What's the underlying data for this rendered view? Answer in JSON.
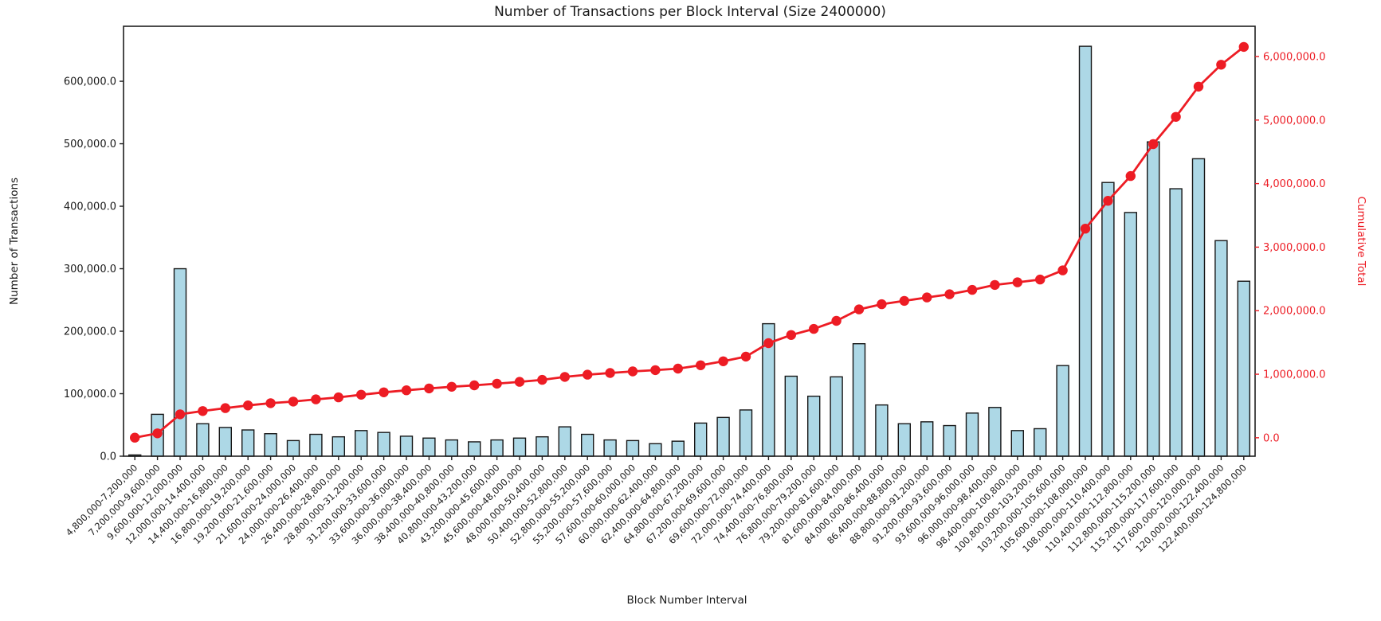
{
  "page": {
    "background_color": "#ffffff"
  },
  "chart_data": {
    "type": "bar",
    "title": "Number of Transactions per Block Interval (Size 2400000)",
    "xlabel": "Block Number Interval",
    "ylabel_left": "Number of Transactions",
    "ylabel_right": "Cumulative Total",
    "grid": false,
    "legend_position": "none",
    "categories": [
      "4,800,000-7,200,000",
      "7,200,000-9,600,000",
      "9,600,000-12,000,000",
      "12,000,000-14,400,000",
      "14,400,000-16,800,000",
      "16,800,000-19,200,000",
      "19,200,000-21,600,000",
      "21,600,000-24,000,000",
      "24,000,000-26,400,000",
      "26,400,000-28,800,000",
      "28,800,000-31,200,000",
      "31,200,000-33,600,000",
      "33,600,000-36,000,000",
      "36,000,000-38,400,000",
      "38,400,000-40,800,000",
      "40,800,000-43,200,000",
      "43,200,000-45,600,000",
      "45,600,000-48,000,000",
      "48,000,000-50,400,000",
      "50,400,000-52,800,000",
      "52,800,000-55,200,000",
      "55,200,000-57,600,000",
      "57,600,000-60,000,000",
      "60,000,000-62,400,000",
      "62,400,000-64,800,000",
      "64,800,000-67,200,000",
      "67,200,000-69,600,000",
      "69,600,000-72,000,000",
      "72,000,000-74,400,000",
      "74,400,000-76,800,000",
      "76,800,000-79,200,000",
      "79,200,000-81,600,000",
      "81,600,000-84,000,000",
      "84,000,000-86,400,000",
      "86,400,000-88,800,000",
      "88,800,000-91,200,000",
      "91,200,000-93,600,000",
      "93,600,000-96,000,000",
      "96,000,000-98,400,000",
      "98,400,000-100,800,000",
      "100,800,000-103,200,000",
      "103,200,000-105,600,000",
      "105,600,000-108,000,000",
      "108,000,000-110,400,000",
      "110,400,000-112,800,000",
      "112,800,000-115,200,000",
      "115,200,000-117,600,000",
      "117,600,000-120,000,000",
      "120,000,000-122,400,000",
      "122,400,000-124,800,000"
    ],
    "series": [
      {
        "name": "Number of Transactions",
        "type": "bar",
        "color": "#add8e6",
        "edge_color": "#161616",
        "values": [
          2000,
          67000,
          300000,
          52000,
          46000,
          42000,
          36000,
          25000,
          35000,
          31000,
          41000,
          38000,
          32000,
          29000,
          26000,
          23000,
          26000,
          29000,
          31000,
          47000,
          35000,
          26000,
          25000,
          20000,
          24000,
          53000,
          62000,
          74000,
          212000,
          128000,
          96000,
          127000,
          180000,
          82000,
          52000,
          55000,
          49000,
          69000,
          78000,
          41000,
          44000,
          145000,
          656000,
          438000,
          390000,
          503000,
          428000,
          476000,
          345000,
          280000
        ]
      },
      {
        "name": "Cumulative Total",
        "type": "line",
        "color": "#ed1c24",
        "marker": "circle",
        "values": [
          2000,
          69000,
          369000,
          421000,
          467000,
          509000,
          545000,
          570000,
          605000,
          636000,
          677000,
          715000,
          747000,
          776000,
          802000,
          825000,
          851000,
          880000,
          911000,
          958000,
          993000,
          1019000,
          1044000,
          1064000,
          1088000,
          1141000,
          1203000,
          1277000,
          1489000,
          1617000,
          1713000,
          1840000,
          2020000,
          2102000,
          2154000,
          2209000,
          2258000,
          2327000,
          2405000,
          2446000,
          2490000,
          2635000,
          3291000,
          3729000,
          4119000,
          4622000,
          5050000,
          5526000,
          5871000,
          6151000
        ]
      }
    ],
    "left_axis": {
      "range": [
        0,
        688000
      ],
      "ticks": [
        0,
        100000,
        200000,
        300000,
        400000,
        500000,
        600000
      ],
      "tick_labels": [
        "0.0",
        "100,000.0",
        "200,000.0",
        "300,000.0",
        "400,000.0",
        "500,000.0",
        "600,000.0"
      ],
      "color": "#000000"
    },
    "right_axis": {
      "range": [
        -290000,
        6476000
      ],
      "ticks": [
        0,
        1000000,
        2000000,
        3000000,
        4000000,
        5000000,
        6000000
      ],
      "tick_labels": [
        "0.0",
        "1,000,000.0",
        "2,000,000.0",
        "3,000,000.0",
        "4,000,000.0",
        "5,000,000.0",
        "6,000,000.0"
      ],
      "color": "#ed1c24"
    },
    "x_axis": {
      "tick_label_rotation_deg": 45,
      "color": "#000000"
    },
    "spine_color": "#1f1f1f",
    "text_color": "#1a1a1a"
  }
}
